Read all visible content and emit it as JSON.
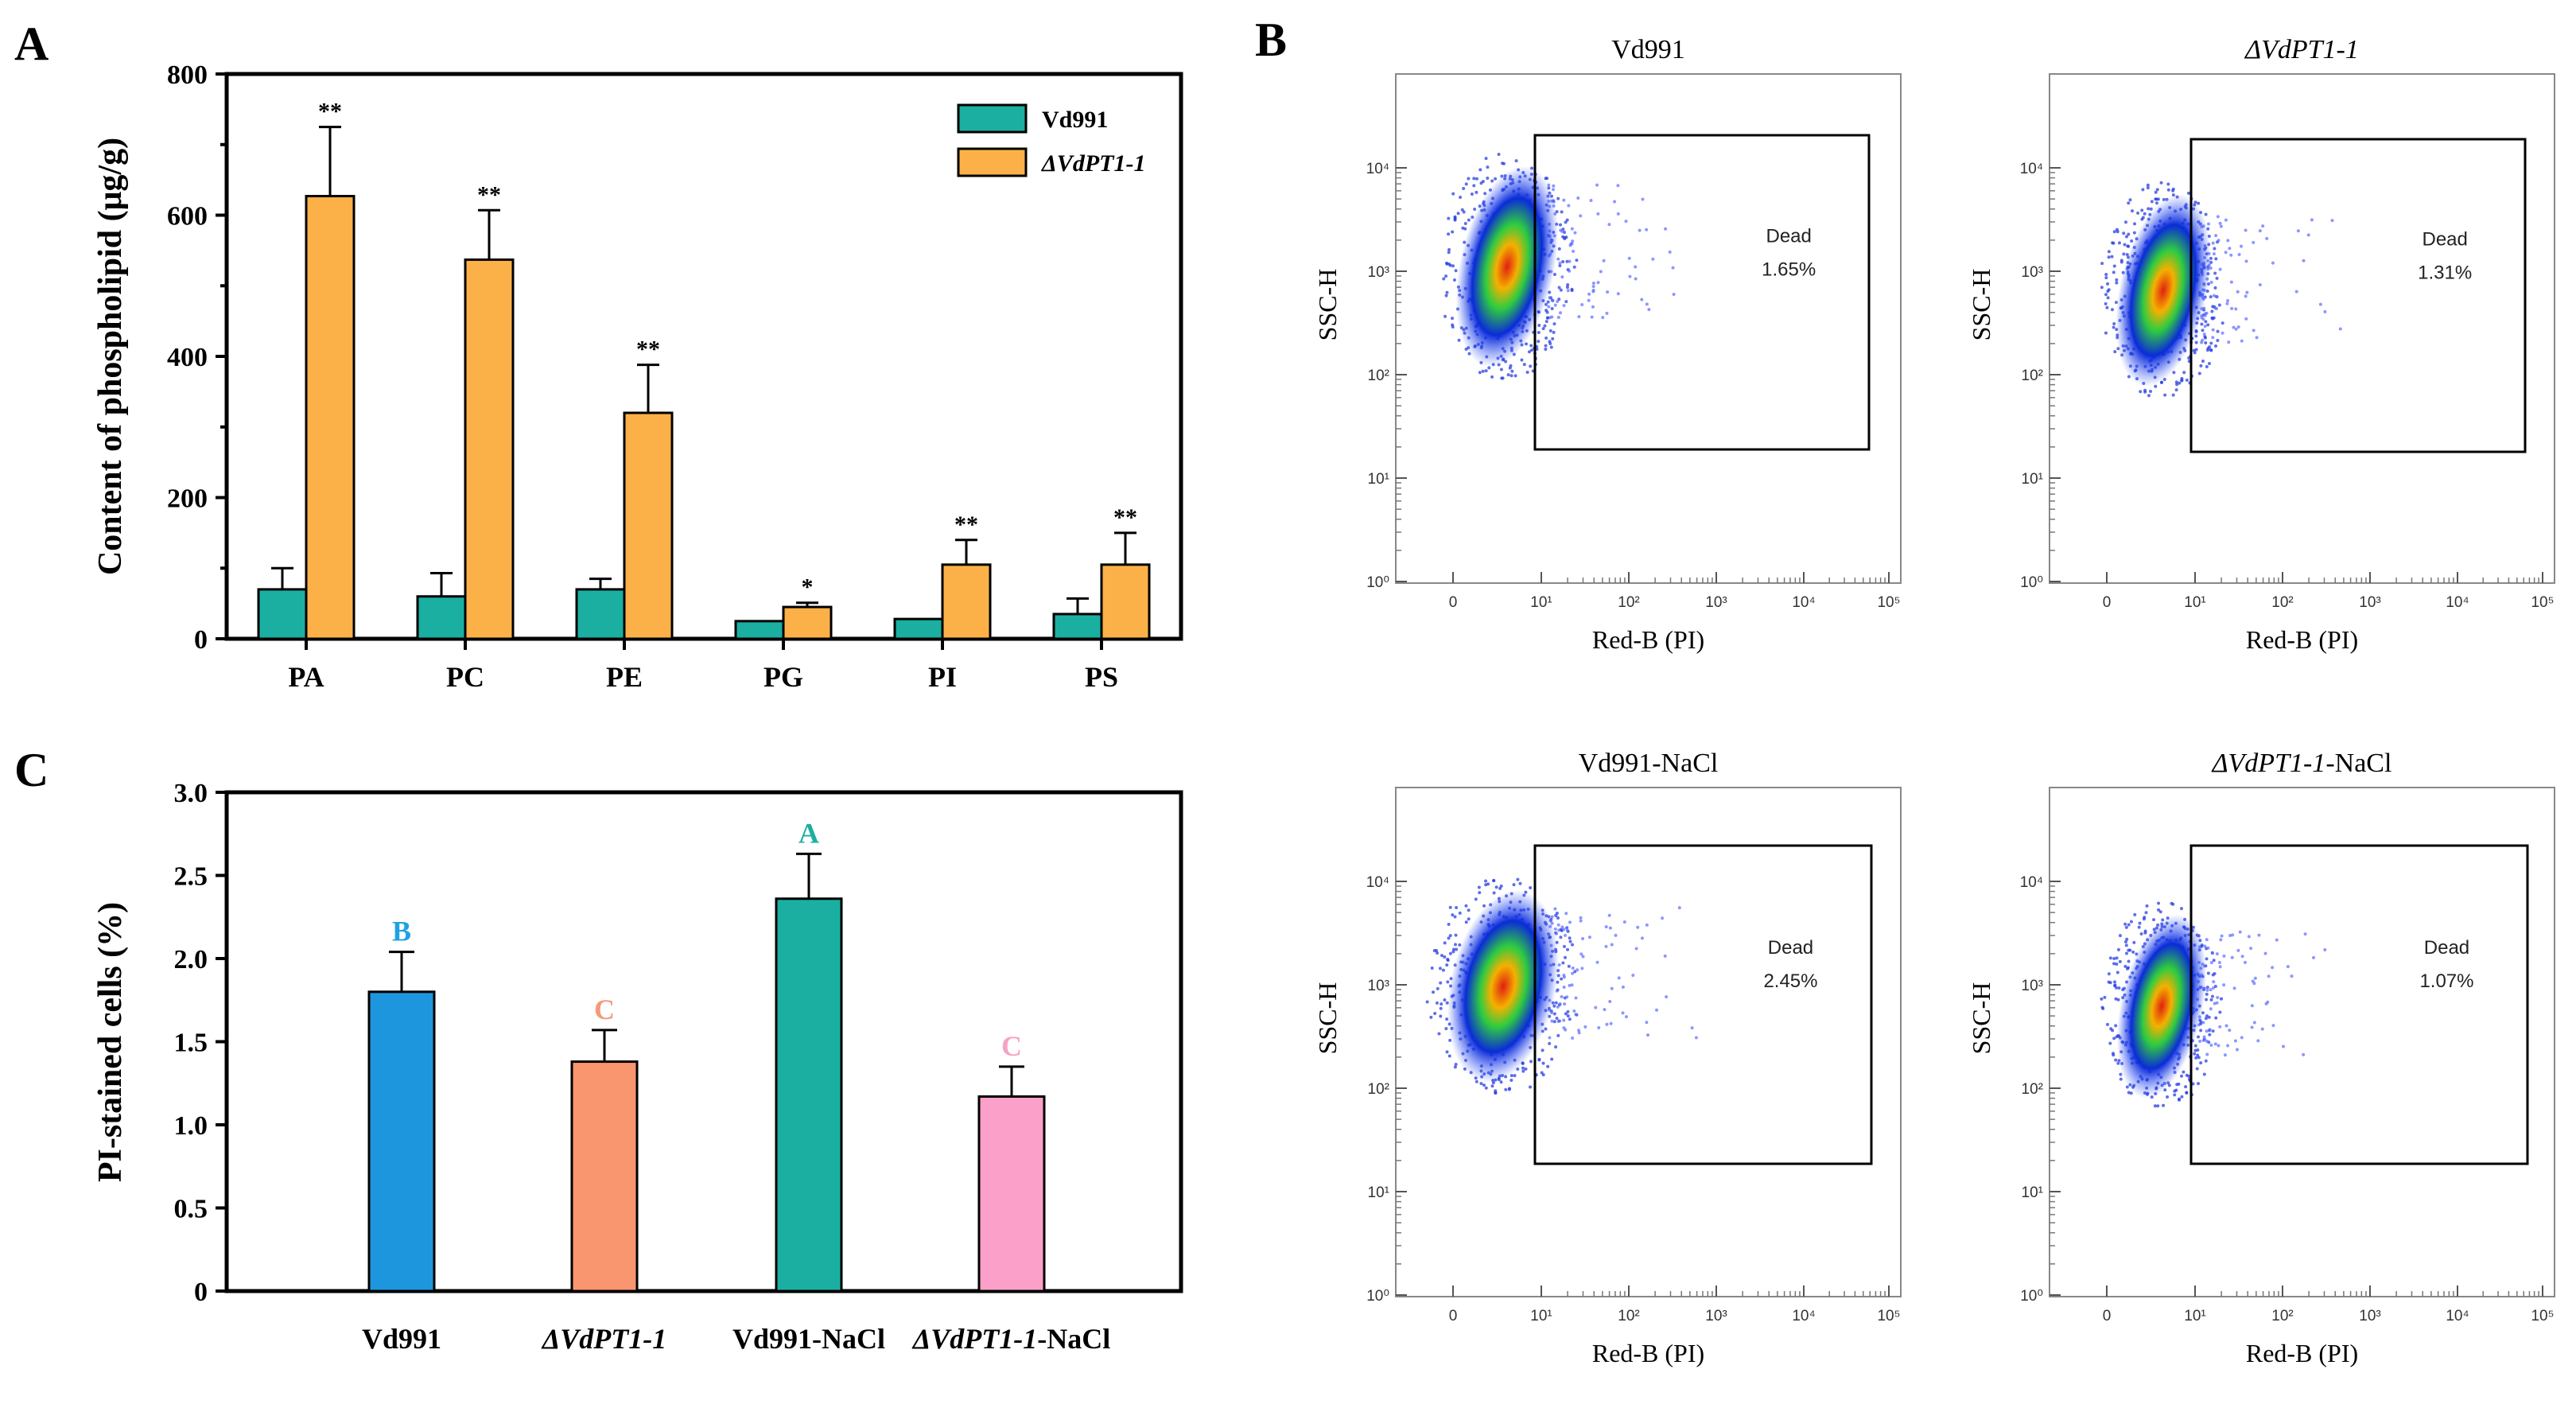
{
  "panels": {
    "a": {
      "letter": "A"
    },
    "b": {
      "letter": "B"
    },
    "c": {
      "letter": "C"
    }
  },
  "chart_data": [
    {
      "panel": "A",
      "type": "bar",
      "categories": [
        "PA",
        "PC",
        "PE",
        "PG",
        "PI",
        "PS"
      ],
      "ylabel": "Content of phospholipid (μg/g)",
      "ylim": [
        0,
        800
      ],
      "yticks": [
        0,
        200,
        400,
        600,
        800
      ],
      "legend_position": "top-right",
      "series": [
        {
          "name": "Vd991",
          "color": "#1aafa0",
          "values": [
            70,
            60,
            70,
            25,
            28,
            35
          ],
          "errors": [
            30,
            33,
            15,
            0,
            0,
            22
          ],
          "significance": [
            "",
            "",
            "",
            "",
            "",
            ""
          ]
        },
        {
          "name": "ΔVdPT1-1",
          "color": "#fbb148",
          "values": [
            627,
            537,
            320,
            45,
            105,
            105
          ],
          "errors": [
            98,
            70,
            68,
            6,
            35,
            45
          ],
          "significance": [
            "**",
            "**",
            "**",
            "*",
            "**",
            "**"
          ]
        }
      ]
    },
    {
      "panel": "C",
      "type": "bar",
      "categories": [
        "Vd991",
        "ΔVdPT1-1",
        "Vd991-NaCl",
        "ΔVdPT1-1-NaCl"
      ],
      "ylabel": "PI-stained cells (%)",
      "ylim": [
        0,
        3.0
      ],
      "yticks": [
        "0",
        "0.5",
        "1.0",
        "1.5",
        "2.0",
        "2.5",
        "3.0"
      ],
      "values": [
        1.8,
        1.38,
        2.36,
        1.17
      ],
      "errors": [
        0.24,
        0.19,
        0.27,
        0.18
      ],
      "colors": [
        "#1e96dd",
        "#f9966f",
        "#1aafa0",
        "#fba0c8"
      ],
      "letters": [
        "B",
        "C",
        "A",
        "C"
      ],
      "letter_colors": [
        "#1ea1e4",
        "#f49a7a",
        "#1aafa0",
        "#f6a3c3"
      ]
    },
    {
      "panel": "B",
      "type": "scatter",
      "xlabel": "Red-B (PI)",
      "ylabel": "SSC-H",
      "x_scale": "log",
      "y_scale": "log",
      "xticks": [
        "0",
        "10¹",
        "10²",
        "10³",
        "10⁴",
        "10⁵"
      ],
      "yticks": [
        "10⁰",
        "10¹",
        "10²",
        "10³",
        "10⁴"
      ],
      "gate_label": "Dead",
      "subplots": [
        {
          "title": "Vd991",
          "dead_percent": "1.65%"
        },
        {
          "title": "ΔVdPT1-1",
          "dead_percent": "1.31%"
        },
        {
          "title": "Vd991-NaCl",
          "dead_percent": "2.45%"
        },
        {
          "title": "ΔVdPT1-1-NaCl",
          "dead_percent": "1.07%"
        }
      ]
    }
  ]
}
